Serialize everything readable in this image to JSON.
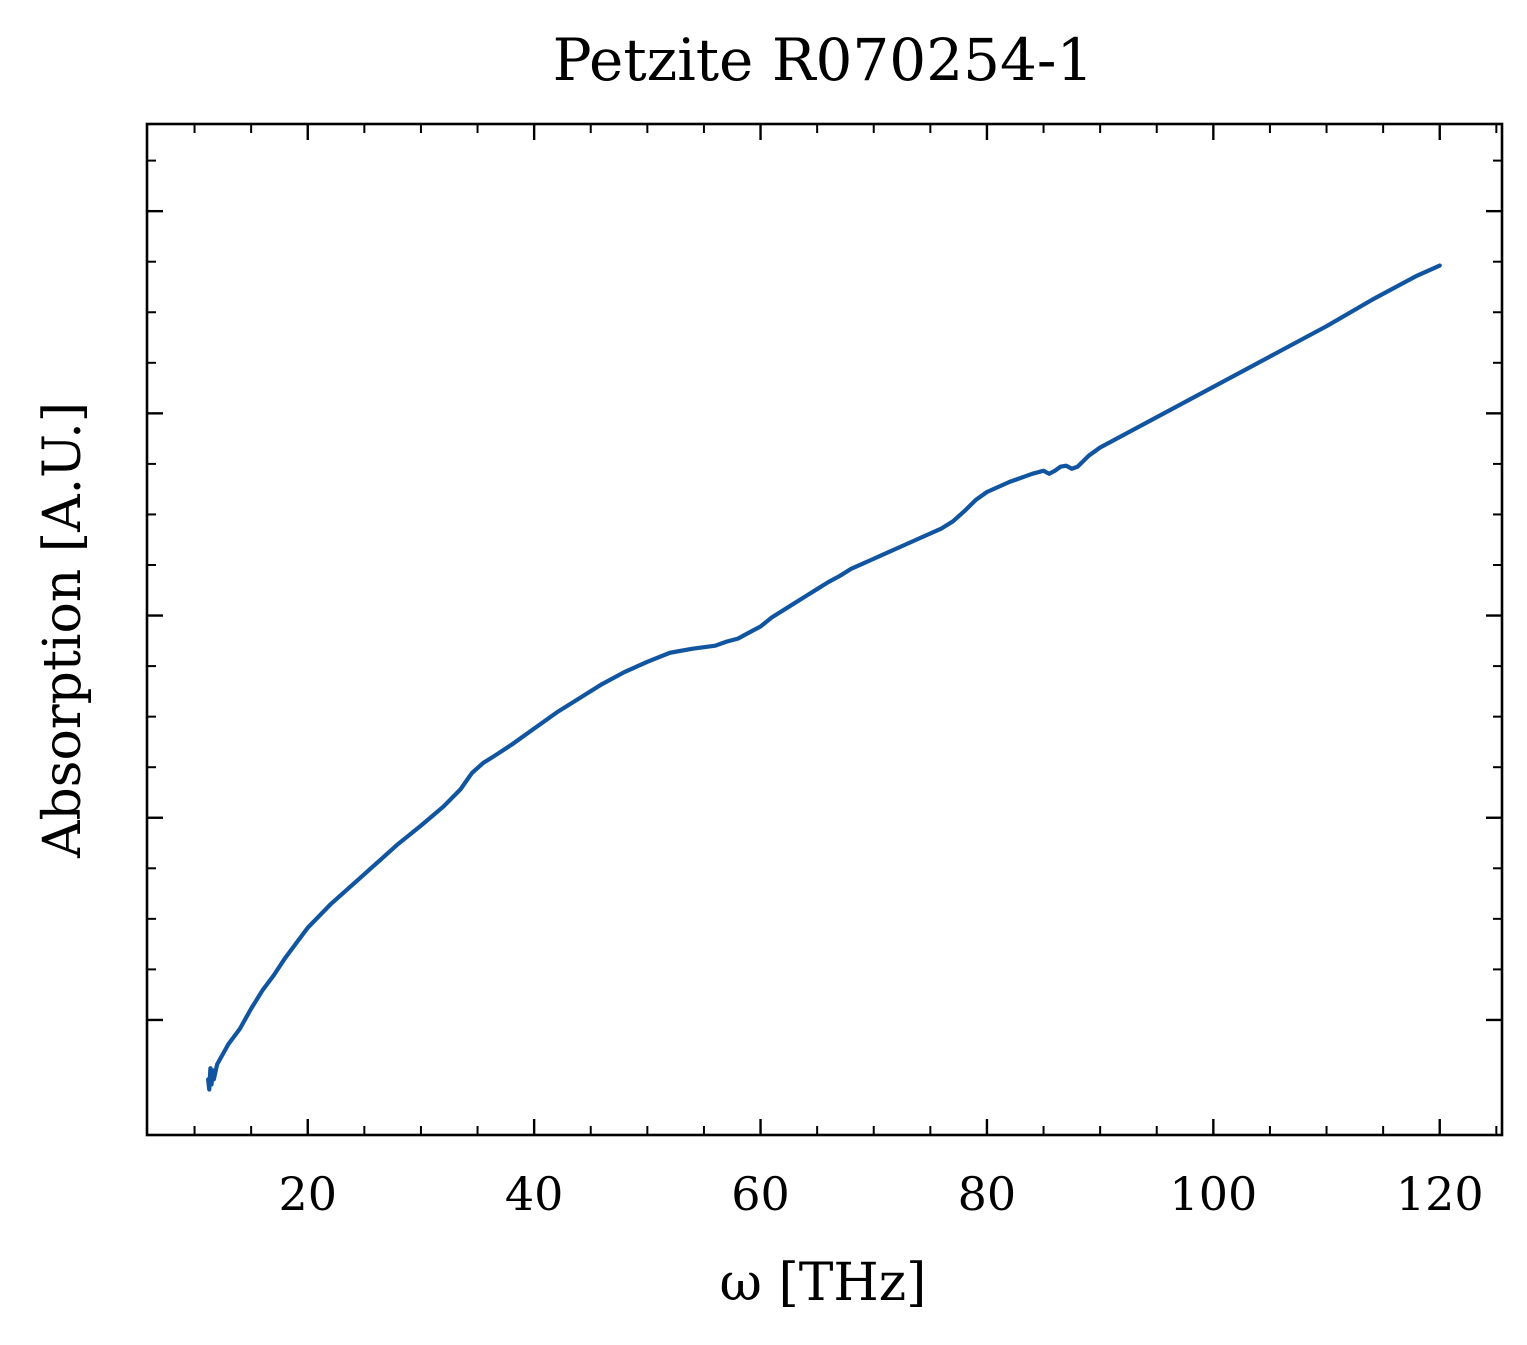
{
  "chart_data": {
    "type": "line",
    "title": "Petzite R070254-1",
    "xlabel": "ω [THz]",
    "ylabel": "Absorption [A.U.]",
    "xlim": [
      5.8,
      125.5
    ],
    "ylim": [
      0.0,
      1.0
    ],
    "xticks": [
      20,
      40,
      60,
      80,
      100,
      120
    ],
    "xtick_labels": [
      "20",
      "40",
      "60",
      "80",
      "100",
      "120"
    ],
    "yticks_labeled": false,
    "grid": false,
    "series": [
      {
        "color": "#1155a0",
        "x": [
          11.2,
          11.3,
          11.4,
          11.5,
          11.6,
          11.7,
          11.8,
          12.0,
          12.5,
          13.0,
          14.0,
          15.0,
          16.0,
          17.0,
          18.0,
          19.0,
          20.0,
          22.0,
          24.0,
          26.0,
          28.0,
          30.0,
          32.0,
          33.5,
          34.5,
          35.5,
          36.5,
          38.0,
          40.0,
          42.0,
          44.0,
          46.0,
          48.0,
          50.0,
          52.0,
          54.0,
          56.0,
          57.0,
          58.0,
          59.0,
          60.0,
          61.0,
          62.0,
          63.0,
          64.0,
          65.0,
          66.0,
          67.0,
          68.0,
          69.0,
          70.0,
          72.0,
          74.0,
          76.0,
          77.0,
          78.0,
          79.0,
          80.0,
          82.0,
          84.0,
          85.0,
          85.5,
          86.0,
          86.5,
          87.0,
          87.5,
          88.0,
          89.0,
          90.0,
          92.0,
          94.0,
          96.0,
          98.0,
          100.0,
          102.0,
          104.0,
          106.0,
          108.0,
          110.0,
          112.0,
          114.0,
          116.0,
          118.0,
          120.0
        ],
        "y": [
          0.055,
          0.045,
          0.066,
          0.05,
          0.064,
          0.055,
          0.06,
          0.07,
          0.08,
          0.09,
          0.105,
          0.125,
          0.143,
          0.158,
          0.175,
          0.19,
          0.205,
          0.228,
          0.248,
          0.268,
          0.288,
          0.306,
          0.325,
          0.342,
          0.358,
          0.368,
          0.375,
          0.386,
          0.402,
          0.418,
          0.432,
          0.446,
          0.458,
          0.468,
          0.477,
          0.481,
          0.484,
          0.488,
          0.491,
          0.497,
          0.503,
          0.512,
          0.519,
          0.526,
          0.533,
          0.54,
          0.547,
          0.553,
          0.56,
          0.565,
          0.57,
          0.58,
          0.59,
          0.6,
          0.607,
          0.617,
          0.628,
          0.636,
          0.646,
          0.654,
          0.657,
          0.654,
          0.657,
          0.661,
          0.662,
          0.659,
          0.661,
          0.672,
          0.68,
          0.692,
          0.704,
          0.716,
          0.728,
          0.74,
          0.752,
          0.764,
          0.776,
          0.788,
          0.8,
          0.813,
          0.826,
          0.838,
          0.85,
          0.86
        ]
      }
    ]
  }
}
